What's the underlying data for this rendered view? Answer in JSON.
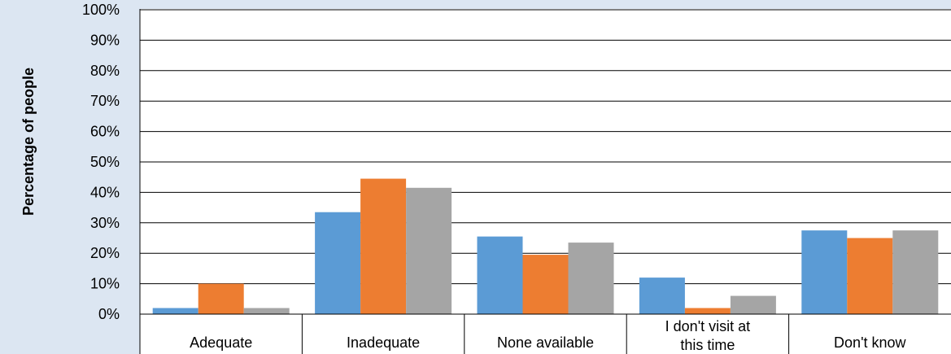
{
  "chart_data": {
    "type": "bar",
    "ylabel": "Percentage of people",
    "xlabel": "",
    "title": "",
    "ylim": [
      0,
      100
    ],
    "yticks": [
      "0%",
      "10%",
      "20%",
      "30%",
      "40%",
      "50%",
      "60%",
      "70%",
      "80%",
      "90%",
      "100%"
    ],
    "categories": [
      "Adequate",
      "Inadequate",
      "None available",
      "I don't visit at this time",
      "Don't know"
    ],
    "series": [
      {
        "color": "#5b9bd5",
        "values": [
          2,
          33.5,
          25.5,
          12,
          27.5
        ]
      },
      {
        "color": "#ed7d31",
        "values": [
          10,
          44.5,
          19.5,
          2,
          25
        ]
      },
      {
        "color": "#a5a5a5",
        "values": [
          2,
          41.5,
          23.5,
          6,
          27.5
        ]
      }
    ],
    "grid": true,
    "legend": "none"
  }
}
